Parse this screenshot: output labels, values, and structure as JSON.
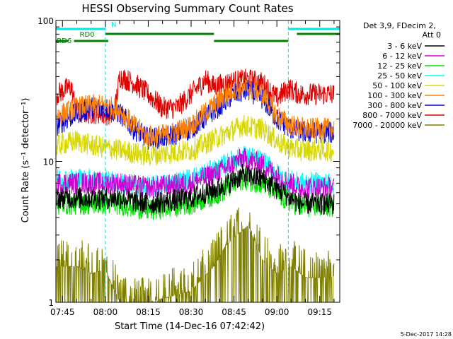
{
  "chart_data": {
    "type": "line",
    "title": "HESSI Observing Summary Count Rates",
    "xlabel": "Start Time (14-Dec-16 07:42:42)",
    "ylabel": "Count Rate (s⁻¹ detector⁻¹)",
    "y_scale": "log",
    "ylim": [
      1,
      100
    ],
    "xlim": [
      "07:42:42",
      "09:22:00"
    ],
    "x_ticks": [
      "07:45",
      "08:00",
      "08:15",
      "08:30",
      "08:45",
      "09:00",
      "09:15"
    ],
    "y_tick_labels": [
      "1",
      "10",
      "100"
    ],
    "grid": false,
    "legend_position": "right",
    "legend_header": "Det 3,9, FDecim 2,\nAtt 0",
    "footer_date": "5-Dec-2017 14:28",
    "flags": [
      {
        "label": "N",
        "color": "#00e5e5",
        "segments": [
          [
            "07:42:42",
            "08:00:00"
          ],
          [
            "09:04:00",
            "09:22:00"
          ]
        ]
      },
      {
        "label": "RD0",
        "color": "#008000",
        "segments": [
          [
            "08:00:00",
            "08:38:00"
          ],
          [
            "09:07:00",
            "09:22:00"
          ]
        ]
      },
      {
        "label": "RD6",
        "color": "#008000",
        "segments": [
          [
            "07:42:42",
            "07:47:00"
          ],
          [
            "07:49:00",
            "08:01:00"
          ],
          [
            "08:38:00",
            "09:04:00"
          ]
        ]
      }
    ],
    "vlines": [
      "08:00:00",
      "09:04:00",
      "09:22:00"
    ],
    "series": [
      {
        "name": "3 - 6 keV",
        "color": "#000000",
        "x": [
          "07:43",
          "07:55",
          "08:05",
          "08:15",
          "08:30",
          "08:40",
          "08:48",
          "08:55",
          "09:02",
          "09:08",
          "09:20"
        ],
        "y": [
          5.5,
          5.5,
          5.5,
          5.0,
          5.5,
          6.5,
          8.0,
          7.5,
          6.0,
          5.0,
          5.0
        ]
      },
      {
        "name": "6 - 12 keV",
        "color": "#d000d0",
        "x": [
          "07:43",
          "07:55",
          "08:05",
          "08:15",
          "08:30",
          "08:40",
          "08:48",
          "08:55",
          "09:02",
          "09:08",
          "09:20"
        ],
        "y": [
          7.0,
          7.0,
          7.0,
          6.5,
          7.0,
          8.5,
          10.5,
          9.5,
          7.5,
          6.5,
          6.5
        ]
      },
      {
        "name": "12 - 25 keV",
        "color": "#00e000",
        "x": [
          "07:43",
          "07:55",
          "08:05",
          "08:15",
          "08:30",
          "08:40",
          "08:48",
          "08:55",
          "09:02",
          "09:08",
          "09:20"
        ],
        "y": [
          5.0,
          5.0,
          5.0,
          4.5,
          5.0,
          6.0,
          7.5,
          7.0,
          5.5,
          4.8,
          4.8
        ]
      },
      {
        "name": "25 - 50 keV",
        "color": "#00ffff",
        "x": [
          "07:43",
          "07:55",
          "08:05",
          "08:15",
          "08:30",
          "08:40",
          "08:48",
          "08:55",
          "09:02",
          "09:08",
          "09:20"
        ],
        "y": [
          7.5,
          7.5,
          7.0,
          6.5,
          7.5,
          9.0,
          11.0,
          10.0,
          7.5,
          7.0,
          7.0
        ]
      },
      {
        "name": "50 - 100 keV",
        "color": "#d8d800",
        "x": [
          "07:43",
          "07:50",
          "07:55",
          "08:05",
          "08:15",
          "08:30",
          "08:40",
          "08:48",
          "08:55",
          "09:02",
          "09:08",
          "09:20"
        ],
        "y": [
          13,
          14,
          13,
          12,
          11,
          12,
          15,
          18,
          17,
          13,
          12,
          12
        ]
      },
      {
        "name": "100 - 300 keV",
        "color": "#ff8000",
        "x": [
          "07:43",
          "07:50",
          "07:55",
          "08:00",
          "08:05",
          "08:10",
          "08:15",
          "08:22",
          "08:30",
          "08:38",
          "08:45",
          "08:50",
          "08:55",
          "09:00",
          "09:05",
          "09:10",
          "09:20"
        ],
        "y": [
          21,
          24,
          25,
          25,
          23,
          18,
          15,
          15.5,
          18,
          25,
          33,
          33,
          30,
          21,
          18,
          17,
          17
        ]
      },
      {
        "name": "300 - 800 keV",
        "color": "#0000e0",
        "x": [
          "07:43",
          "07:50",
          "07:55",
          "08:00",
          "08:05",
          "08:10",
          "08:15",
          "08:22",
          "08:30",
          "08:38",
          "08:45",
          "08:50",
          "08:55",
          "09:00",
          "09:05",
          "09:10",
          "09:20"
        ],
        "y": [
          18,
          22,
          24,
          24,
          22,
          17,
          14.5,
          15,
          17,
          23,
          30,
          32,
          28,
          20,
          17,
          16,
          16
        ]
      },
      {
        "name": "800 - 7000 keV",
        "color": "#e00000",
        "x": [
          "07:43",
          "07:48",
          "07:50",
          "07:53",
          "07:58",
          "08:03",
          "08:05",
          "08:10",
          "08:15",
          "08:20",
          "08:25",
          "08:30",
          "08:35",
          "08:38",
          "08:45",
          "08:50",
          "08:55",
          "09:00",
          "09:04",
          "09:08",
          "09:15",
          "09:20"
        ],
        "y": [
          30,
          34,
          22,
          22,
          22,
          21,
          40,
          36,
          30,
          24,
          24,
          30,
          38,
          34,
          37,
          38,
          36,
          28,
          33,
          30,
          30,
          30
        ]
      },
      {
        "name": "7000 - 20000 keV",
        "color": "#808000",
        "x": [
          "07:43",
          "07:50",
          "07:55",
          "08:00",
          "08:05",
          "08:15",
          "08:30",
          "08:38",
          "08:42",
          "08:46",
          "08:50",
          "08:55",
          "09:00",
          "09:05",
          "09:10",
          "09:20"
        ],
        "y": [
          1.8,
          1.8,
          1.6,
          1.7,
          1.0,
          1.0,
          1.2,
          1.8,
          2.5,
          3.0,
          3.5,
          2.0,
          1.6,
          1.8,
          1.5,
          1.5
        ]
      }
    ]
  }
}
